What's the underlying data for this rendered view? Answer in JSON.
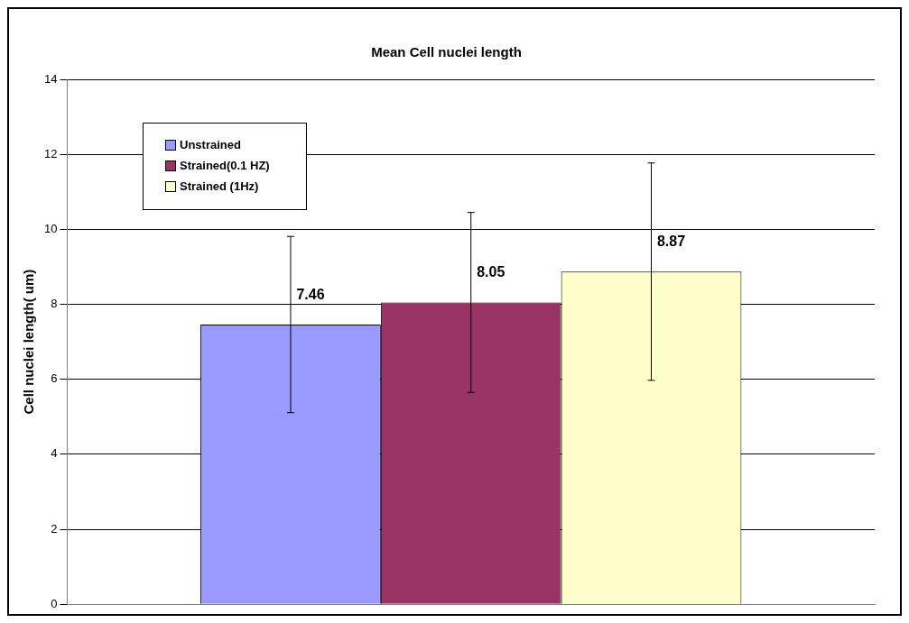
{
  "chart_data": {
    "type": "bar",
    "title": "Mean Cell nuclei length",
    "ylabel": "Cell nuclei length( um)",
    "categories": [
      null
    ],
    "series": [
      {
        "name": "Unstrained",
        "color": "#9999ff",
        "values": [
          7.46
        ],
        "errors": [
          2.35
        ]
      },
      {
        "name": "Strained(0.1 HZ)",
        "color": "#993366",
        "values": [
          8.05
        ],
        "errors": [
          2.4
        ]
      },
      {
        "name": "Strained (1Hz)",
        "color": "#ffffcc",
        "values": [
          8.87
        ],
        "errors": [
          2.9
        ]
      }
    ],
    "ylim": [
      0,
      14
    ],
    "yticks": [
      0,
      2,
      4,
      6,
      8,
      10,
      12,
      14
    ],
    "grid": "y",
    "legend": "top left",
    "data_labels": true
  }
}
